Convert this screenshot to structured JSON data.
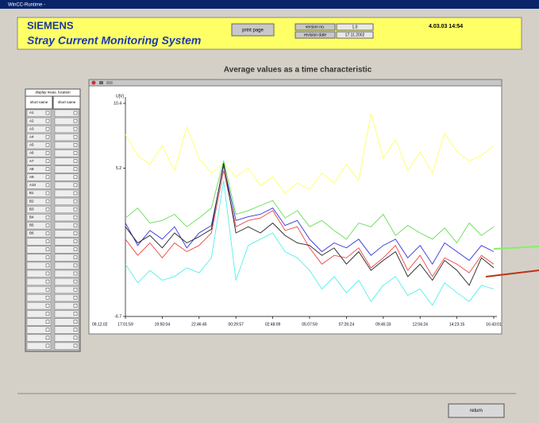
{
  "window_title": "WinCC-Runtime -",
  "header": {
    "brand": "SIEMENS",
    "title": "Stray Current Monitoring System",
    "print_button": "print page",
    "version_label": "version no.",
    "version": "1.0",
    "revision_label": "revision date",
    "revision": "17.11.2002",
    "datetime": "4.03.03   14:54"
  },
  "page_title": "Average values as a time characteristic",
  "table": {
    "header": "display meas. location",
    "columns": [
      "short name",
      "short name"
    ],
    "rows": [
      "A1",
      "A2",
      "A3",
      "A4",
      "A5",
      "A6",
      "A7",
      "A8",
      "A9",
      "A10",
      "B1",
      "B2",
      "B3",
      "B4",
      "B5",
      "B6"
    ]
  },
  "return_button": "return",
  "chart_data": {
    "type": "line",
    "ylabel": "U[V]",
    "x_date_label": "09.12.02",
    "x": [
      0,
      1,
      2,
      3,
      4,
      5,
      6,
      7,
      8,
      9,
      10,
      11,
      12,
      13,
      14,
      15,
      16,
      17,
      18,
      19,
      20,
      21,
      22,
      23,
      24,
      25,
      26,
      27,
      28,
      29,
      30
    ],
    "xlim": [
      0,
      30
    ],
    "xticks": [
      {
        "value": 0,
        "label": "17:01:59"
      },
      {
        "value": 3,
        "label": "19:50:04"
      },
      {
        "value": 6,
        "label": "22:46:45"
      },
      {
        "value": 9,
        "label": "00:29:57"
      },
      {
        "value": 12,
        "label": "02:48:09"
      },
      {
        "value": 15,
        "label": "05:07:59"
      },
      {
        "value": 18,
        "label": "07:26:24"
      },
      {
        "value": 21,
        "label": "09:45:33"
      },
      {
        "value": 24,
        "label": "12:04:24"
      },
      {
        "value": 27,
        "label": "14:23:15"
      },
      {
        "value": 30,
        "label": "16:43:01"
      }
    ],
    "ylim": [
      -6.7,
      10.4
    ],
    "yticks": [
      10.4,
      5.2,
      -6.7
    ],
    "series": [
      {
        "color": "#ffff66",
        "values": [
          7.9,
          6.2,
          5.5,
          7.0,
          5.0,
          8.5,
          6.0,
          4.8,
          5.6,
          4.5,
          5.2,
          3.8,
          4.5,
          3.2,
          4.0,
          3.5,
          4.8,
          4.0,
          5.5,
          4.2,
          9.6,
          6.0,
          7.5,
          5.0,
          6.5,
          4.8,
          8.0,
          6.5,
          5.8,
          6.2,
          7.0
        ]
      },
      {
        "color": "#66dd55",
        "values": [
          1.2,
          2.0,
          0.8,
          1.0,
          1.5,
          0.5,
          1.2,
          2.0,
          5.8,
          1.5,
          1.8,
          2.2,
          2.6,
          1.2,
          1.8,
          0.5,
          1.0,
          0.2,
          -0.5,
          0.8,
          0.5,
          1.5,
          -0.2,
          0.6,
          0.0,
          -0.5,
          0.4,
          -0.8,
          0.8,
          -0.2,
          0.5
        ]
      },
      {
        "color": "#3333dd",
        "values": [
          0.8,
          -1.0,
          0.2,
          -0.5,
          0.5,
          -1.2,
          0.0,
          0.6,
          5.4,
          1.0,
          1.3,
          1.5,
          2.0,
          0.6,
          1.0,
          -0.5,
          -1.5,
          -0.8,
          -1.2,
          -0.5,
          -1.8,
          -1.0,
          -0.5,
          -2.0,
          -1.0,
          -2.5,
          -0.8,
          -1.5,
          -2.2,
          -1.0,
          -1.5
        ]
      },
      {
        "color": "#ee4444",
        "values": [
          -0.5,
          -1.8,
          -0.8,
          -2.0,
          -0.8,
          -1.5,
          -1.0,
          0.0,
          5.0,
          0.5,
          1.0,
          1.2,
          1.8,
          0.2,
          0.5,
          -1.2,
          -2.5,
          -1.8,
          -2.0,
          -1.2,
          -2.8,
          -2.0,
          -1.0,
          -3.0,
          -1.8,
          -3.5,
          -2.0,
          -2.5,
          -3.2,
          -1.8,
          -2.5
        ]
      },
      {
        "color": "#222222",
        "values": [
          0.5,
          -0.8,
          -0.2,
          -1.2,
          0.0,
          -0.8,
          -0.3,
          0.3,
          5.6,
          0.0,
          0.5,
          0.0,
          0.8,
          -0.2,
          -0.8,
          -1.0,
          -1.8,
          -1.2,
          -2.5,
          -1.5,
          -3.0,
          -2.2,
          -1.5,
          -3.5,
          -2.5,
          -3.8,
          -2.2,
          -3.0,
          -4.2,
          -2.0,
          -2.8
        ]
      },
      {
        "color": "#55eeee",
        "values": [
          -2.5,
          -4.0,
          -3.0,
          -3.8,
          -3.5,
          -2.8,
          -3.2,
          -2.0,
          4.2,
          -3.8,
          -1.0,
          -0.5,
          0.0,
          -1.5,
          -2.0,
          -3.0,
          -4.5,
          -3.5,
          -4.8,
          -3.8,
          -5.5,
          -4.2,
          -3.5,
          -5.0,
          -4.5,
          -5.8,
          -4.0,
          -4.8,
          -5.5,
          -4.2,
          -4.5
        ]
      }
    ]
  }
}
